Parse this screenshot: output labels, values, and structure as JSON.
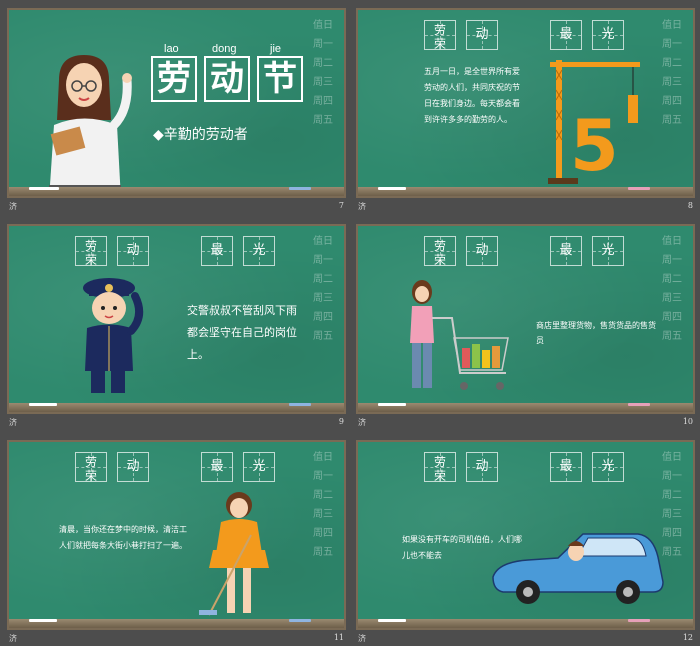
{
  "slides": [
    {
      "number": "7",
      "caption_left": "济",
      "pinyin": [
        "lao",
        "dong",
        "jie"
      ],
      "title_chars": [
        "劳",
        "动",
        "节"
      ],
      "subtitle": "◆辛勤的劳动者"
    },
    {
      "number": "8",
      "caption_left": "济",
      "header": [
        "劳荣",
        "动",
        "最",
        "光"
      ],
      "text": "五月一日，是全世界所有爱劳动的人们，共同庆祝的节日在我们身边。每天都会看到许许多多的勤劳的人。"
    },
    {
      "number": "9",
      "caption_left": "济",
      "header": [
        "劳荣",
        "动",
        "最",
        "光"
      ],
      "text": "交警叔叔不管刮风下雨都会坚守在自己的岗位上。"
    },
    {
      "number": "10",
      "caption_left": "济",
      "header": [
        "劳荣",
        "动",
        "最",
        "光"
      ],
      "text": "商店里整理货物，售货货品的售货员"
    },
    {
      "number": "11",
      "caption_left": "济",
      "header": [
        "劳荣",
        "动",
        "最",
        "光"
      ],
      "text": "清晨，当你还在梦中的时候，清洁工人们就把每条大街小巷打扫了一遍。"
    },
    {
      "number": "12",
      "caption_left": "济",
      "header": [
        "劳荣",
        "动",
        "最",
        "光"
      ],
      "text": "如果没有开车的司机伯伯，人们哪儿也不能去"
    }
  ],
  "week_scribble": [
    "值日",
    "周一",
    "周二",
    "周三",
    "周四",
    "周五"
  ],
  "colors": {
    "board": "#2f8a6e",
    "frame": "#7a6a55",
    "background": "#4d4d4d",
    "accent_orange": "#f39a1c"
  }
}
